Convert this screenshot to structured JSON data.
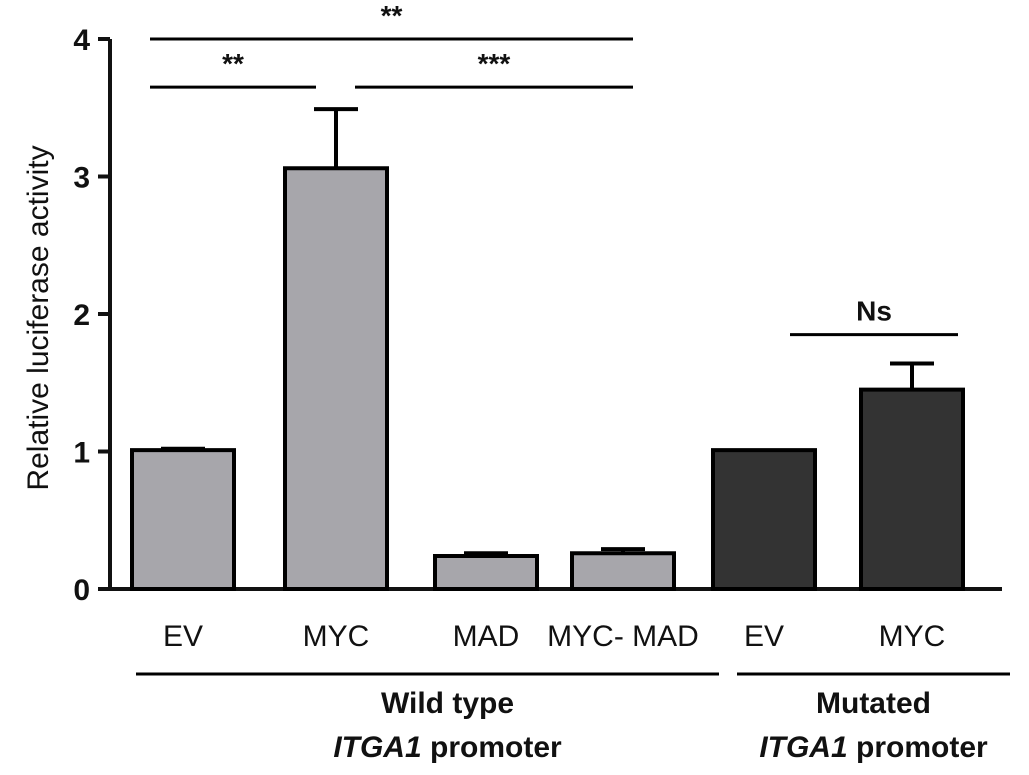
{
  "chart_data": {
    "type": "bar",
    "title": "",
    "xlabel": "",
    "ylabel": "Relative luciferase activity",
    "ylim": [
      0,
      4
    ],
    "yticks": [
      "0",
      "1",
      "2",
      "3",
      "4"
    ],
    "grid": false,
    "categories": [
      "EV",
      "MYC",
      "MAD",
      "MYC- MAD",
      "EV",
      "MYC"
    ],
    "values": [
      1.01,
      3.06,
      0.24,
      0.26,
      1.01,
      1.45
    ],
    "errors": [
      0.01,
      0.43,
      0.02,
      0.03,
      0.0,
      0.19
    ],
    "colors": [
      "#a7a6ab",
      "#a7a6ab",
      "#a7a6ab",
      "#a7a6ab",
      "#333333",
      "#333333"
    ],
    "groups": [
      {
        "line1": "Wild type",
        "italic": "ITGA1",
        "rest": " promoter",
        "start": 0,
        "end": 3
      },
      {
        "line1": "Mutated",
        "italic": "ITGA1",
        "rest": " promoter",
        "start": 4,
        "end": 5
      }
    ],
    "significance": [
      {
        "from": 0,
        "to": 3,
        "label": "**",
        "level": 4.0
      },
      {
        "from": 0,
        "to": 1,
        "label": "**",
        "level": 3.65
      },
      {
        "from": 1,
        "to": 3,
        "label": "***",
        "level": 3.65
      },
      {
        "from": 4,
        "to": 5,
        "label": "Ns",
        "level": 1.85
      }
    ]
  }
}
